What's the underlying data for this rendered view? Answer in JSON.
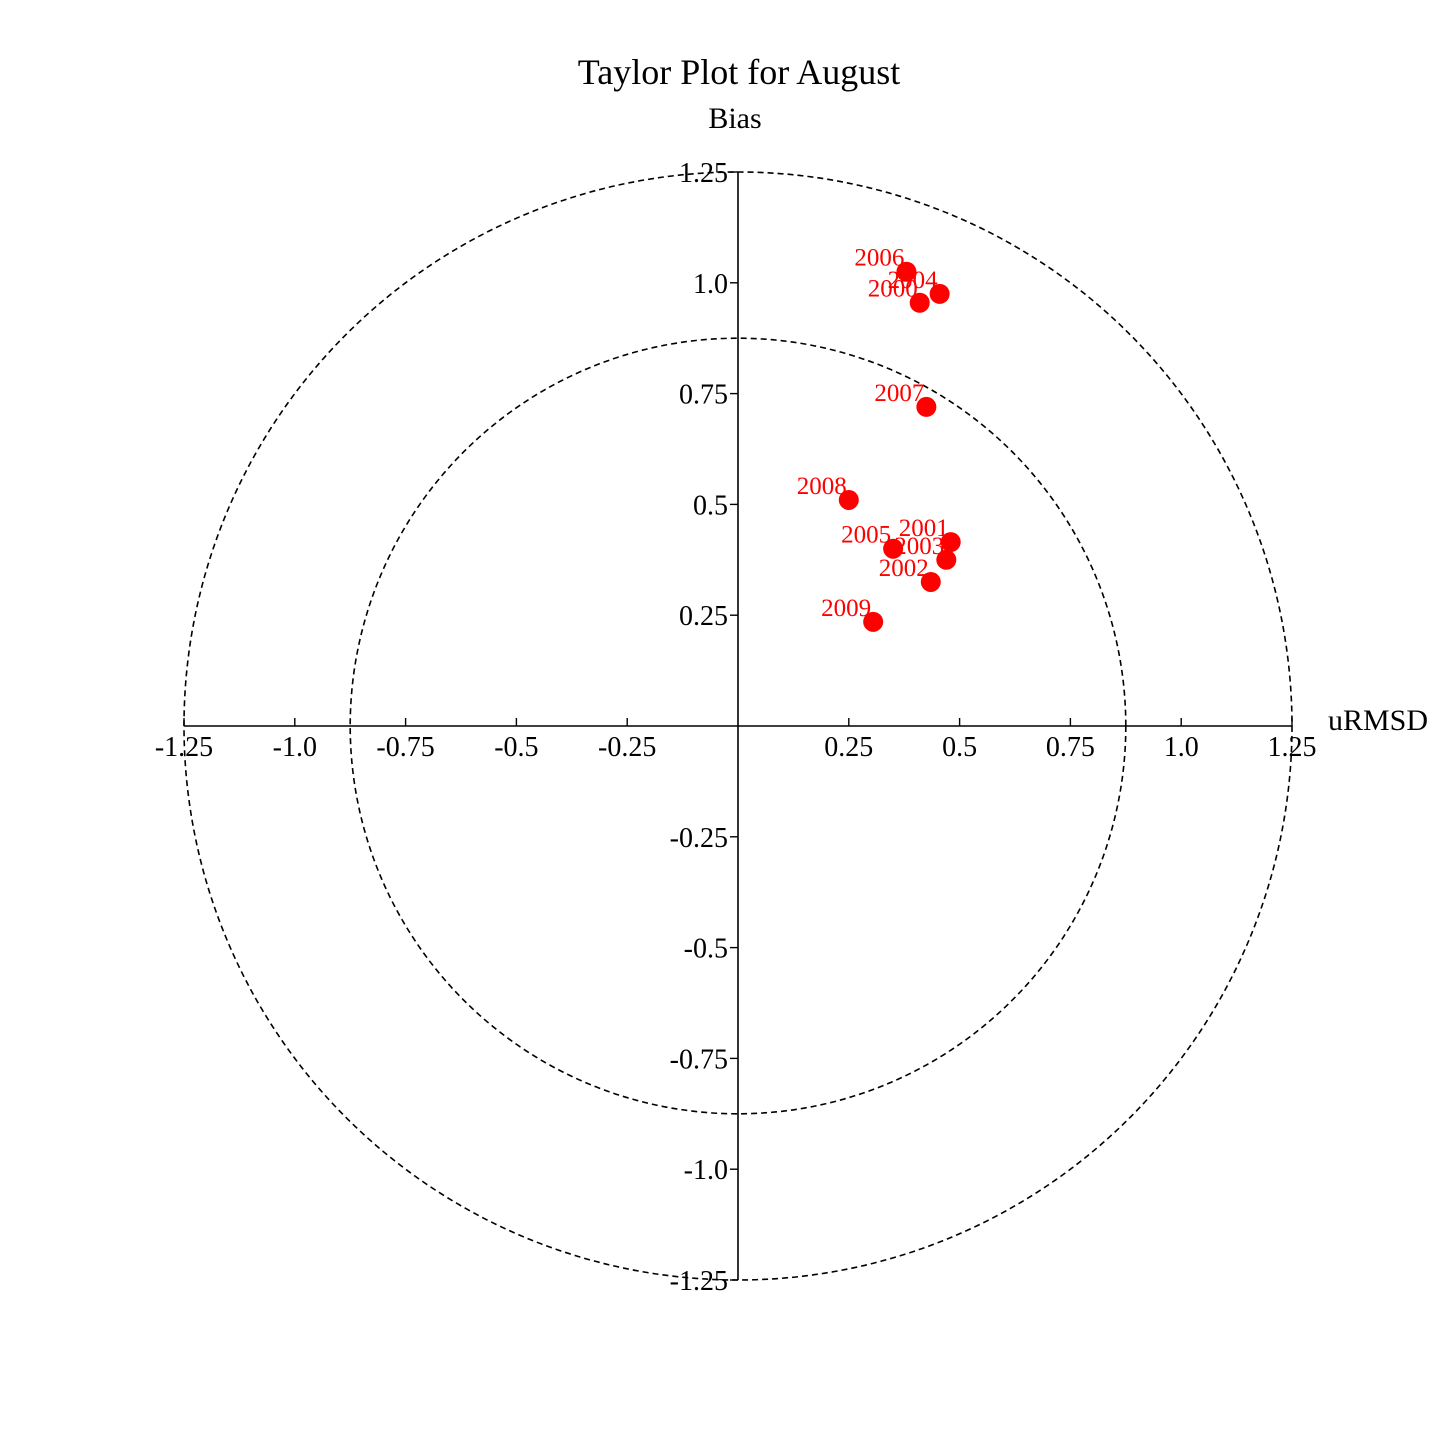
{
  "chart_data": {
    "type": "scatter",
    "title": "Taylor Plot for August",
    "xlabel": "uRMSD",
    "ylabel": "Bias",
    "xlim": [
      -1.25,
      1.25
    ],
    "ylim": [
      -1.25,
      1.25
    ],
    "xticks": [
      "-1.25",
      "-1.0",
      "-0.75",
      "-0.5",
      "-0.25",
      "0.25",
      "0.5",
      "0.75",
      "1.0",
      "1.25"
    ],
    "yticks": [
      "-1.25",
      "-1.0",
      "-0.75",
      "-0.5",
      "-0.25",
      "0.25",
      "0.5",
      "0.75",
      "1.0",
      "1.25"
    ],
    "reference_circles": [
      0.875,
      1.25
    ],
    "grid": false,
    "marker_color": "#ff0000",
    "points": [
      {
        "label": "2000",
        "x": 0.41,
        "y": 0.955
      },
      {
        "label": "2001",
        "x": 0.48,
        "y": 0.415
      },
      {
        "label": "2002",
        "x": 0.435,
        "y": 0.325
      },
      {
        "label": "2003",
        "x": 0.47,
        "y": 0.375
      },
      {
        "label": "2004",
        "x": 0.455,
        "y": 0.975
      },
      {
        "label": "2005",
        "x": 0.35,
        "y": 0.4
      },
      {
        "label": "2006",
        "x": 0.38,
        "y": 1.025
      },
      {
        "label": "2007",
        "x": 0.425,
        "y": 0.72
      },
      {
        "label": "2008",
        "x": 0.25,
        "y": 0.51
      },
      {
        "label": "2009",
        "x": 0.305,
        "y": 0.235
      }
    ]
  }
}
